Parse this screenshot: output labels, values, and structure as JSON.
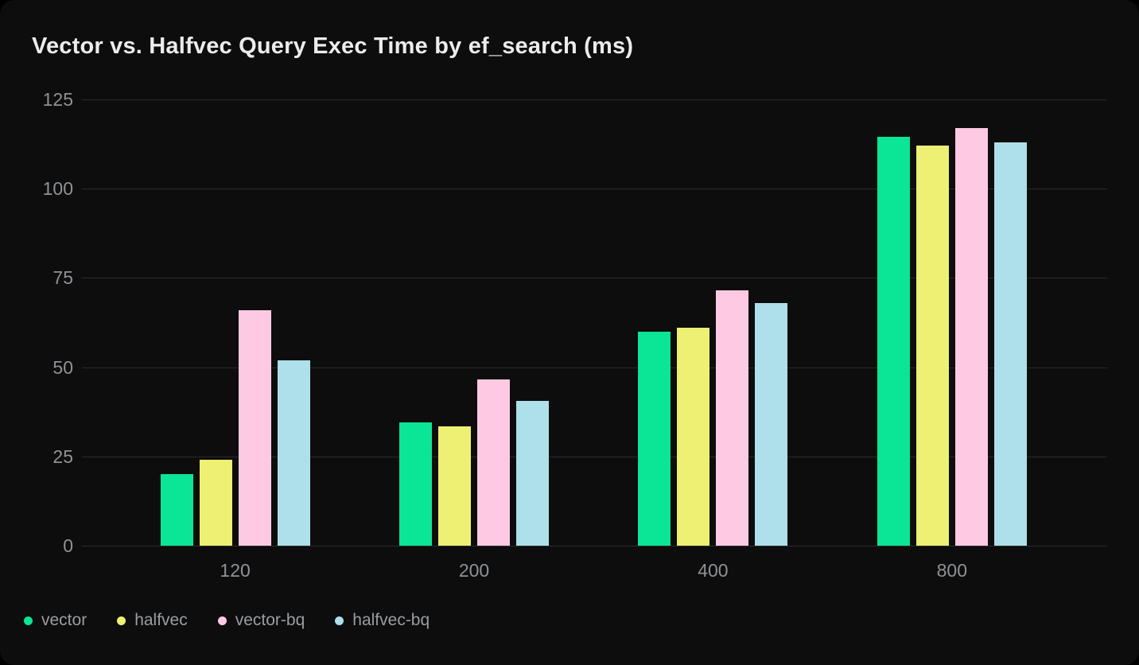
{
  "chart_data": {
    "type": "bar",
    "title": "Vector vs. Halfvec Query Exec Time by ef_search (ms)",
    "categories": [
      "120",
      "200",
      "400",
      "800"
    ],
    "series": [
      {
        "name": "vector",
        "color": "#0ae596",
        "values": [
          20,
          34.5,
          60,
          114.5
        ]
      },
      {
        "name": "halfvec",
        "color": "#edf073",
        "values": [
          24,
          33.5,
          61,
          112
        ]
      },
      {
        "name": "vector-bq",
        "color": "#fec9e3",
        "values": [
          66,
          46.5,
          71.5,
          117
        ]
      },
      {
        "name": "halfvec-bq",
        "color": "#ade0ea",
        "values": [
          52,
          40.5,
          68,
          113
        ]
      }
    ],
    "xlabel": "",
    "ylabel": "",
    "ylim": [
      0,
      125
    ],
    "yticks": [
      0,
      25,
      50,
      75,
      100,
      125
    ],
    "grid": true,
    "legend_position": "bottom-left"
  },
  "colors": {
    "page_background": "#000000",
    "card_background": "#0d0d0d",
    "gridline": "#2b2b2b",
    "axis_text": "#8f9296",
    "title_text": "#ececec",
    "legend_text": "#9a9da1"
  }
}
